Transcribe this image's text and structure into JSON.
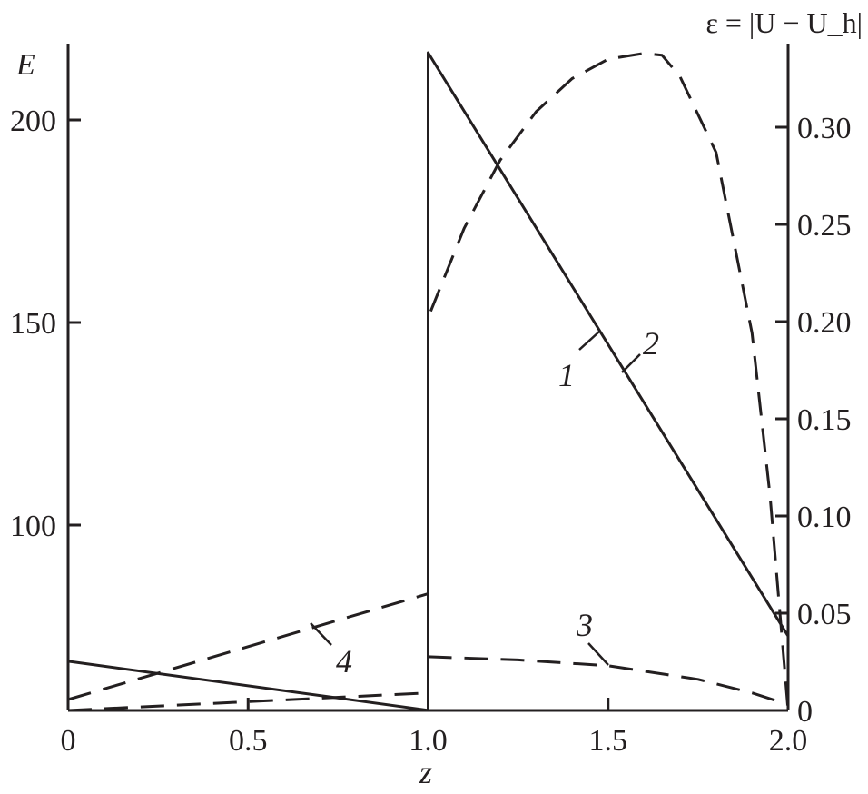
{
  "chart_data": {
    "type": "line",
    "xlabel": "z",
    "ylabel_left": "E",
    "ylabel_right": "ε = |U − U_h|",
    "ylabel_right_parts": {
      "prefix": "ε = |U − U",
      "sub": "h",
      "suffix": "|"
    },
    "xlim": [
      0,
      2.0
    ],
    "ylim_left": [
      54.3,
      218
    ],
    "ylim_right": [
      0,
      0.34
    ],
    "x_ticks": [
      "0",
      "0.5",
      "1.0",
      "1.5",
      "2.0"
    ],
    "x_tick_values": [
      0,
      0.5,
      1.0,
      1.5,
      2.0
    ],
    "y_left_ticks": [
      "100",
      "150",
      "200"
    ],
    "y_left_tick_values": [
      100,
      150,
      200
    ],
    "y_right_ticks": [
      "0",
      "0.05",
      "0.10",
      "0.15",
      "0.20",
      "0.25",
      "0.30"
    ],
    "y_right_tick_values": [
      0,
      0.05,
      0.1,
      0.15,
      0.2,
      0.25,
      0.3
    ],
    "grid": false,
    "series": [
      {
        "name": "1",
        "axis": "left",
        "style": "solid",
        "x": [
          0,
          1.0,
          1.0,
          2.0
        ],
        "y": [
          66.4,
          54.3,
          216.6,
          72.6
        ]
      },
      {
        "name": "2",
        "axis": "right",
        "style": "dashed",
        "x": [
          1.0,
          1.0,
          1.1,
          1.2,
          1.3,
          1.4,
          1.5,
          1.6,
          1.65,
          1.7,
          1.8,
          1.9,
          1.95,
          2.0
        ],
        "y": [
          0.0,
          0.202,
          0.248,
          0.283,
          0.308,
          0.325,
          0.335,
          0.338,
          0.337,
          0.326,
          0.287,
          0.194,
          0.11,
          0.0
        ]
      },
      {
        "name": "3",
        "axis": "right",
        "style": "dashed",
        "x": [
          1.0,
          1.25,
          1.5,
          1.75,
          1.9,
          2.0
        ],
        "y": [
          0.0276,
          0.026,
          0.023,
          0.016,
          0.009,
          0.003
        ]
      },
      {
        "name": "4",
        "axis": "right",
        "style": "dashed",
        "x": [
          0,
          1.0
        ],
        "y": [
          0.0056,
          0.06
        ]
      },
      {
        "axis": "right",
        "style": "dashed",
        "x": [
          0,
          1.0
        ],
        "y": [
          0.0,
          0.009
        ]
      }
    ],
    "annotations": [
      {
        "text": "1",
        "x": 1.47,
        "E": 147
      },
      {
        "text": "2",
        "x": 1.6,
        "E": 150
      },
      {
        "text": "3",
        "x": 1.5,
        "eps": 0.045
      },
      {
        "text": "4",
        "x": 0.75,
        "eps": 0.02
      }
    ]
  }
}
